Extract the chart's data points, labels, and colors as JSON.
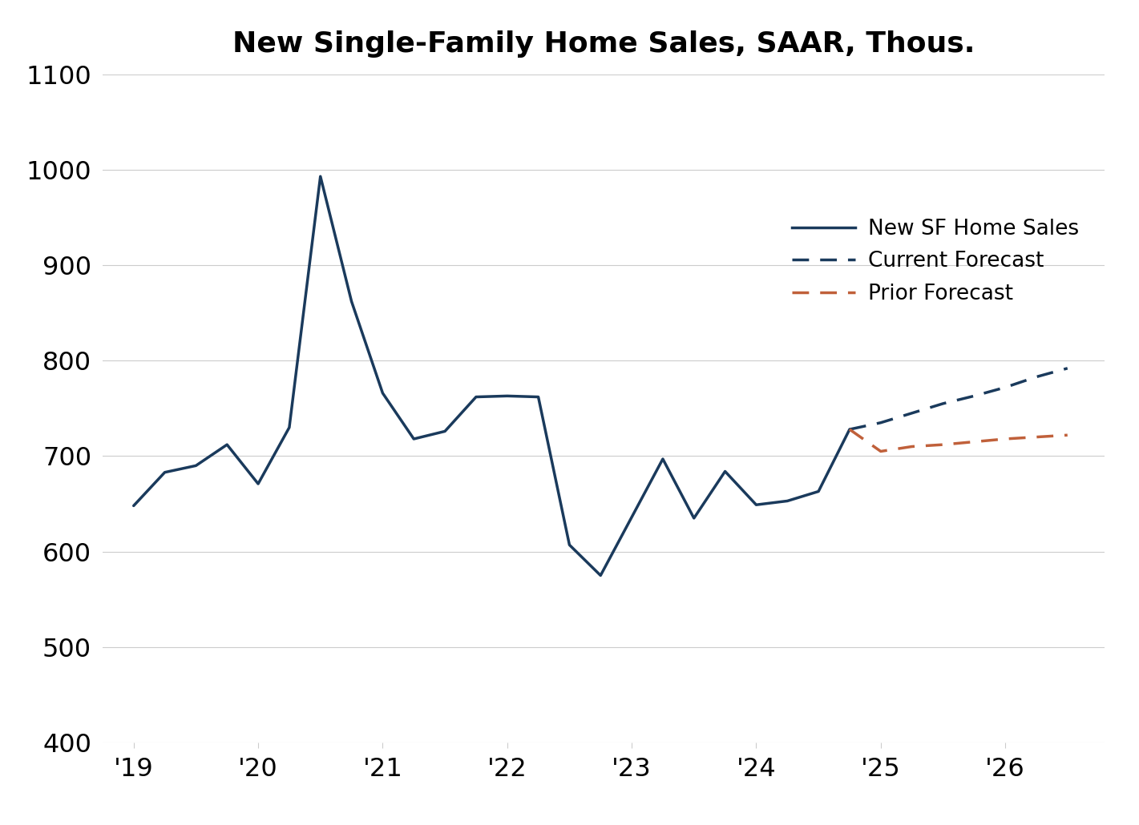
{
  "title": "New Single-Family Home Sales, SAAR, Thous.",
  "title_fontsize": 26,
  "title_fontweight": "bold",
  "background_color": "#ffffff",
  "ylim": [
    400,
    1100
  ],
  "yticks": [
    400,
    500,
    600,
    700,
    800,
    900,
    1000,
    1100
  ],
  "xtick_labels": [
    "'19",
    "'20",
    "'21",
    "'22",
    "'23",
    "'24",
    "'25",
    "'26"
  ],
  "xtick_positions": [
    2019,
    2020,
    2021,
    2022,
    2023,
    2024,
    2025,
    2026
  ],
  "actual_x": [
    2019.0,
    2019.25,
    2019.5,
    2019.75,
    2020.0,
    2020.25,
    2020.5,
    2020.75,
    2021.0,
    2021.25,
    2021.5,
    2021.75,
    2022.0,
    2022.25,
    2022.5,
    2022.75,
    2023.0,
    2023.25,
    2023.5,
    2023.75,
    2024.0,
    2024.25,
    2024.5,
    2024.75
  ],
  "actual_y": [
    648,
    683,
    690,
    712,
    671,
    730,
    993,
    862,
    766,
    718,
    726,
    762,
    763,
    762,
    607,
    575,
    636,
    697,
    635,
    684,
    649,
    653,
    663,
    728
  ],
  "current_forecast_x": [
    2024.75,
    2025.0,
    2025.25,
    2025.5,
    2025.75,
    2026.0,
    2026.25,
    2026.5
  ],
  "current_forecast_y": [
    728,
    735,
    745,
    755,
    763,
    772,
    783,
    792
  ],
  "prior_forecast_x": [
    2024.75,
    2025.0,
    2025.25,
    2025.5,
    2025.75,
    2026.0,
    2026.25,
    2026.5
  ],
  "prior_forecast_y": [
    728,
    705,
    710,
    712,
    715,
    718,
    720,
    722
  ],
  "actual_color": "#1a3a5c",
  "current_forecast_color": "#1a3a5c",
  "prior_forecast_color": "#c0603a",
  "actual_linewidth": 2.5,
  "forecast_linewidth": 2.5,
  "legend_labels": [
    "New SF Home Sales",
    "Current Forecast",
    "Prior Forecast"
  ],
  "legend_fontsize": 19,
  "tick_fontsize": 23,
  "grid_color": "#cccccc",
  "grid_linewidth": 0.8,
  "xlim_left": 2018.75,
  "xlim_right": 2026.8
}
